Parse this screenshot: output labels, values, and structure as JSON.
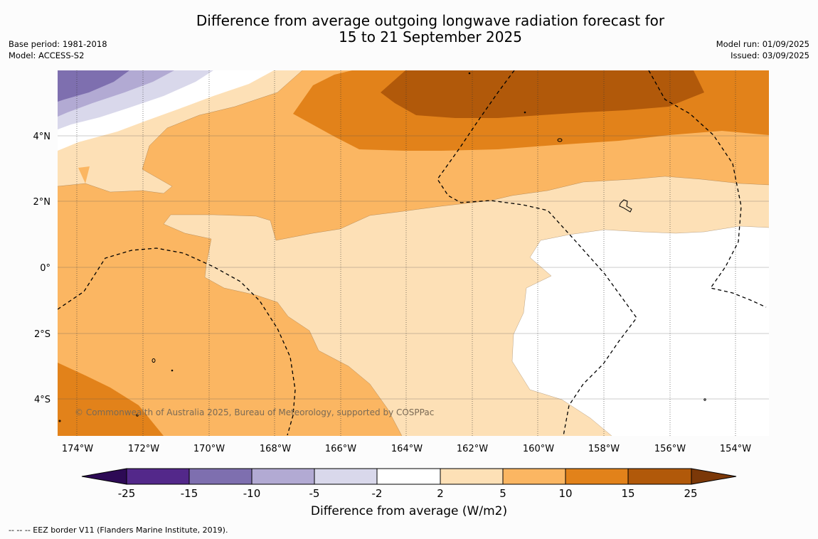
{
  "title_line1": "Difference from average outgoing longwave radiation forecast for",
  "title_line2": "15 to 21 September 2025",
  "meta_left": {
    "base_period": "Base period: 1981-2018",
    "model": "Model: ACCESS-S2"
  },
  "meta_right": {
    "model_run": "Model run: 01/09/2025",
    "issued": "Issued: 03/09/2025"
  },
  "map": {
    "lon_labels": [
      "174°W",
      "172°W",
      "170°W",
      "168°W",
      "166°W",
      "164°W",
      "162°W",
      "160°W",
      "158°W",
      "156°W",
      "154°W"
    ],
    "lat_labels": [
      "4°N",
      "2°N",
      "0°",
      "2°S",
      "4°S"
    ],
    "copyright": "© Commonwealth of Australia 2025, Bureau of Meteorology, supported by COSPPac"
  },
  "colorbar": {
    "title": "Difference from average (W/m2)",
    "ticks": [
      "-25",
      "-15",
      "-10",
      "-5",
      "-2",
      "2",
      "5",
      "10",
      "15",
      "25"
    ],
    "colors": [
      "#2d0a55",
      "#53288a",
      "#7e6faf",
      "#b2aad3",
      "#d9d8eb",
      "#ffffff",
      "#fde0b6",
      "#fbb662",
      "#e2821a",
      "#b1590a",
      "#7b3808"
    ]
  },
  "legend_note": "--  --  -- EEZ border V11 (Flanders Marine Institute, 2019)."
}
